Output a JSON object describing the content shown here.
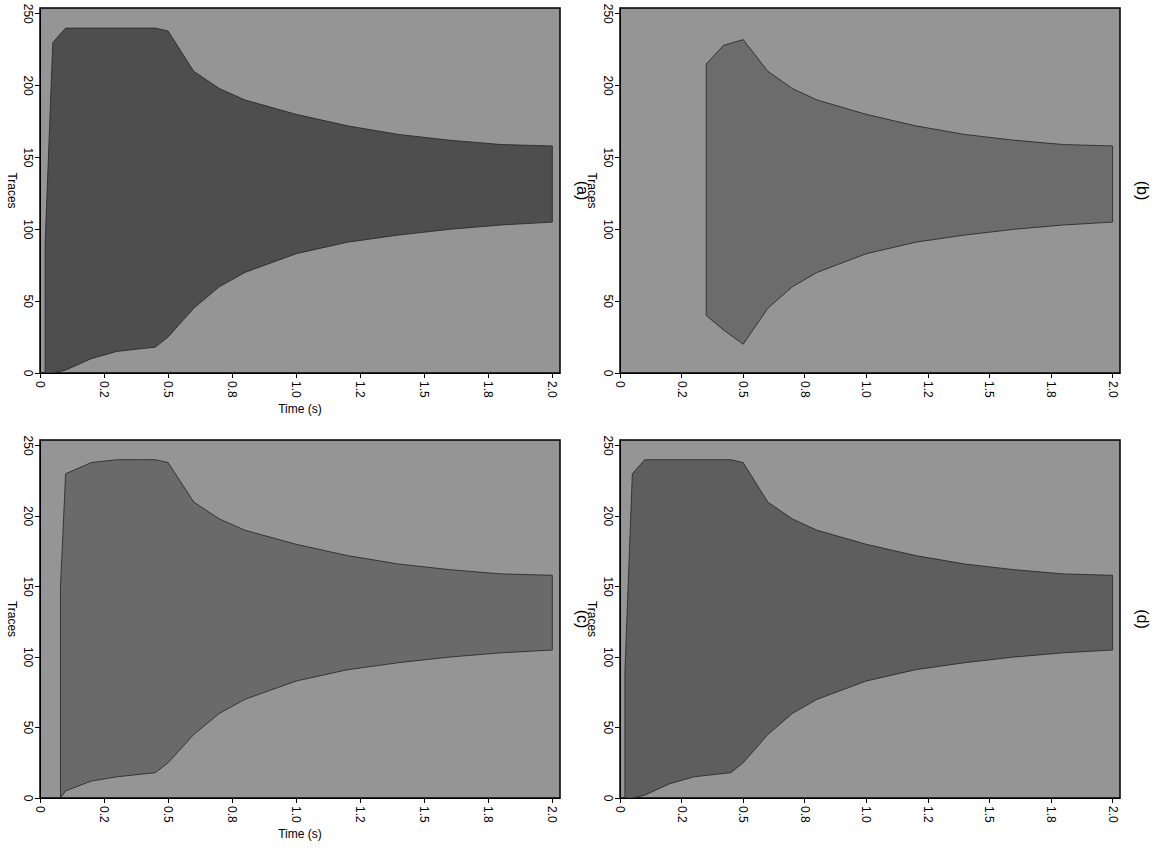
{
  "chart_data": [
    {
      "type": "area",
      "title": "(a)",
      "x_label": "Time (s)",
      "y_label": "Traces",
      "xlim": [
        0,
        2.03
      ],
      "xticks": [
        0,
        {
          "value": 0.25,
          "label": "0.2"
        },
        0.5,
        {
          "value": 0.75,
          "label": "0.8"
        },
        {
          "value": 1,
          "label": "1.0"
        },
        {
          "value": 1.25,
          "label": "1.2"
        },
        1.5,
        {
          "value": 1.75,
          "label": "1.8"
        },
        {
          "value": 2,
          "label": "2.0"
        }
      ],
      "ylim": [
        0,
        254
      ],
      "yticks": [
        0,
        50,
        100,
        150,
        200,
        250
      ],
      "color": "#4e4e4e",
      "envelope": {
        "x": [
          0.02,
          0.05,
          0.1,
          0.2,
          0.3,
          0.4,
          0.45,
          0.5,
          0.6,
          0.7,
          0.8,
          1.0,
          1.2,
          1.4,
          1.6,
          1.8,
          2.0
        ],
        "upper": [
          90,
          230,
          240,
          240,
          240,
          240,
          240,
          238,
          210,
          198,
          190,
          180,
          172,
          166,
          162,
          159,
          158
        ],
        "lower": [
          0,
          0,
          2,
          10,
          15,
          17,
          18,
          25,
          45,
          60,
          70,
          83,
          91,
          96,
          100,
          103,
          105
        ]
      }
    },
    {
      "type": "area",
      "title": "(b)",
      "y_label": "Traces",
      "xlim": [
        0,
        2.03
      ],
      "xticks": [
        0,
        {
          "value": 0.25,
          "label": "0.2"
        },
        0.5,
        {
          "value": 0.75,
          "label": "0.8"
        },
        {
          "value": 1,
          "label": "1.0"
        },
        {
          "value": 1.25,
          "label": "1.2"
        },
        1.5,
        {
          "value": 1.75,
          "label": "1.8"
        },
        {
          "value": 2,
          "label": "2.0"
        }
      ],
      "ylim": [
        0,
        254
      ],
      "yticks": [
        0,
        50,
        100,
        150,
        200,
        250
      ],
      "color": "#6c6c6c",
      "envelope": {
        "x": [
          0.35,
          0.42,
          0.5,
          0.6,
          0.7,
          0.8,
          1.0,
          1.2,
          1.4,
          1.6,
          1.8,
          2.0
        ],
        "upper": [
          215,
          228,
          232,
          210,
          198,
          190,
          180,
          172,
          166,
          162,
          159,
          158
        ],
        "lower": [
          40,
          30,
          20,
          45,
          60,
          70,
          83,
          91,
          96,
          100,
          103,
          105
        ]
      }
    },
    {
      "type": "area",
      "title": "(c)",
      "x_label": "Time (s)",
      "y_label": "Traces",
      "xlim": [
        0,
        2.03
      ],
      "xticks": [
        0,
        {
          "value": 0.25,
          "label": "0.2"
        },
        0.5,
        {
          "value": 0.75,
          "label": "0.8"
        },
        {
          "value": 1,
          "label": "1.0"
        },
        {
          "value": 1.25,
          "label": "1.2"
        },
        1.5,
        {
          "value": 1.75,
          "label": "1.8"
        },
        {
          "value": 2,
          "label": "2.0"
        }
      ],
      "ylim": [
        0,
        254
      ],
      "yticks": [
        0,
        50,
        100,
        150,
        200,
        250
      ],
      "color": "#6a6a6a",
      "envelope": {
        "x": [
          0.08,
          0.1,
          0.2,
          0.3,
          0.4,
          0.45,
          0.5,
          0.6,
          0.7,
          0.8,
          1.0,
          1.2,
          1.4,
          1.6,
          1.8,
          2.0
        ],
        "upper": [
          150,
          230,
          238,
          240,
          240,
          240,
          238,
          210,
          198,
          190,
          180,
          172,
          166,
          162,
          159,
          158
        ],
        "lower": [
          0,
          5,
          12,
          15,
          17,
          18,
          25,
          45,
          60,
          70,
          83,
          91,
          96,
          100,
          103,
          105
        ]
      }
    },
    {
      "type": "area",
      "title": "(d)",
      "y_label": "Traces",
      "xlim": [
        0,
        2.03
      ],
      "xticks": [
        0,
        {
          "value": 0.25,
          "label": "0.2"
        },
        0.5,
        {
          "value": 0.75,
          "label": "0.8"
        },
        {
          "value": 1,
          "label": "1.0"
        },
        {
          "value": 1.25,
          "label": "1.2"
        },
        1.5,
        {
          "value": 1.75,
          "label": "1.8"
        },
        {
          "value": 2,
          "label": "2.0"
        }
      ],
      "ylim": [
        0,
        254
      ],
      "yticks": [
        0,
        50,
        100,
        150,
        200,
        250
      ],
      "color": "#5e5e5e",
      "envelope": {
        "x": [
          0.02,
          0.05,
          0.1,
          0.2,
          0.3,
          0.4,
          0.45,
          0.5,
          0.6,
          0.7,
          0.8,
          1.0,
          1.2,
          1.4,
          1.6,
          1.8,
          2.0
        ],
        "upper": [
          90,
          230,
          240,
          240,
          240,
          240,
          240,
          238,
          210,
          198,
          190,
          180,
          172,
          166,
          162,
          159,
          158
        ],
        "lower": [
          0,
          0,
          2,
          10,
          15,
          17,
          18,
          25,
          45,
          60,
          70,
          83,
          91,
          96,
          100,
          103,
          105
        ]
      }
    }
  ]
}
